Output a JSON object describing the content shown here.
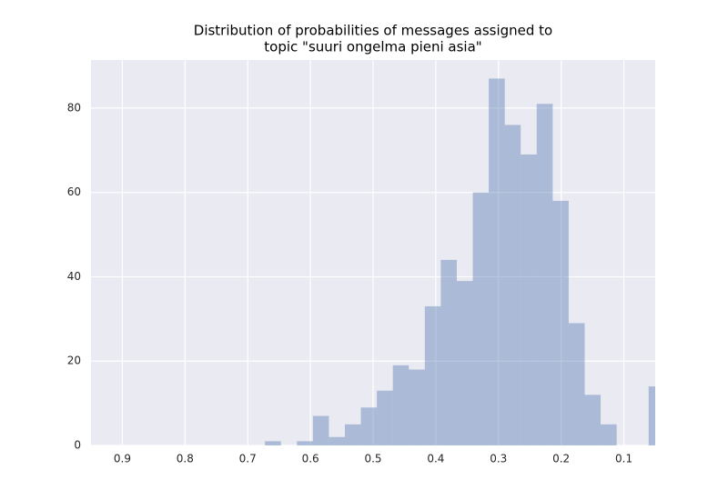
{
  "chart_data": {
    "type": "histogram",
    "title": [
      "Distribution of probabilities of messages assigned to",
      "topic \"suuri ongelma pieni asia\""
    ],
    "bins": [
      0.6725,
      0.647,
      0.6215,
      0.596,
      0.5705,
      0.545,
      0.5195,
      0.494,
      0.4685,
      0.443,
      0.4175,
      0.392,
      0.3665,
      0.341,
      0.3155,
      0.29,
      0.2645,
      0.239,
      0.2135,
      0.188,
      0.1625,
      0.137,
      0.1115,
      0.086,
      0.0605,
      0.035
    ],
    "values": [
      1,
      0,
      1,
      7,
      2,
      5,
      9,
      13,
      19,
      18,
      33,
      44,
      39,
      60,
      87,
      76,
      69,
      81,
      58,
      29,
      12,
      5,
      0,
      0,
      14
    ],
    "color": "#4c72b0",
    "xlim": [
      0.95,
      0.05
    ],
    "xticks": [
      0.9,
      0.8,
      0.7,
      0.6,
      0.5,
      0.4,
      0.3,
      0.2,
      0.1
    ],
    "ylim": [
      0,
      91.4
    ],
    "yticks": [
      0,
      20,
      40,
      60,
      80
    ],
    "grid": true
  }
}
